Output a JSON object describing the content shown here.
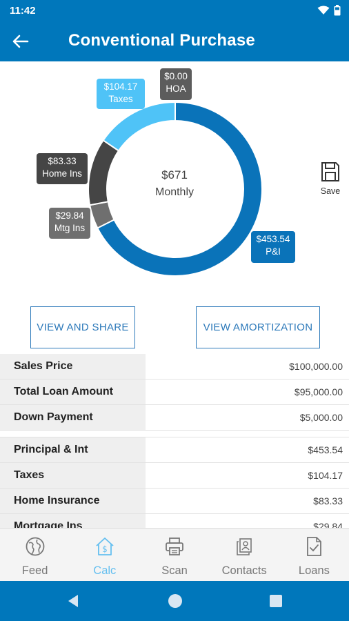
{
  "status_bar": {
    "time": "11:42"
  },
  "app_bar": {
    "title": "Conventional Purchase"
  },
  "payment": {
    "center_amount": "$671",
    "center_label": "Monthly",
    "segments": [
      {
        "name": "P&I",
        "amount": "$453.54",
        "value": 453.54,
        "color": "#0a73b9"
      },
      {
        "name": "Mtg Ins",
        "amount": "$29.84",
        "value": 29.84,
        "color": "#6f6f6f"
      },
      {
        "name": "Home Ins",
        "amount": "$83.33",
        "value": 83.33,
        "color": "#454545"
      },
      {
        "name": "Taxes",
        "amount": "$104.17",
        "value": 104.17,
        "color": "#4fc3f7"
      },
      {
        "name": "HOA",
        "amount": "$0.00",
        "value": 0,
        "color": "#5c5c5c"
      }
    ]
  },
  "save": {
    "label": "Save"
  },
  "buttons": {
    "share": "VIEW AND SHARE",
    "amortization": "VIEW AMORTIZATION"
  },
  "table": {
    "rows": [
      {
        "label": "Sales Price",
        "value": "$100,000.00"
      },
      {
        "label": "Total Loan Amount",
        "value": "$95,000.00"
      },
      {
        "label": "Down Payment",
        "value": "$5,000.00"
      },
      {
        "label": "Principal & Int",
        "value": "$453.54"
      },
      {
        "label": "Taxes",
        "value": "$104.17"
      },
      {
        "label": "Home Insurance",
        "value": "$83.33"
      },
      {
        "label": "Mortgage Ins",
        "value": "$29.84"
      }
    ]
  },
  "nav": {
    "items": [
      {
        "label": "Feed",
        "icon": "globe-icon"
      },
      {
        "label": "Calc",
        "icon": "house-dollar-icon",
        "active": true
      },
      {
        "label": "Scan",
        "icon": "printer-icon"
      },
      {
        "label": "Contacts",
        "icon": "contacts-icon"
      },
      {
        "label": "Loans",
        "icon": "document-check-icon"
      }
    ]
  },
  "colors": {
    "primary": "#0077bb",
    "accent": "#64bff0"
  }
}
